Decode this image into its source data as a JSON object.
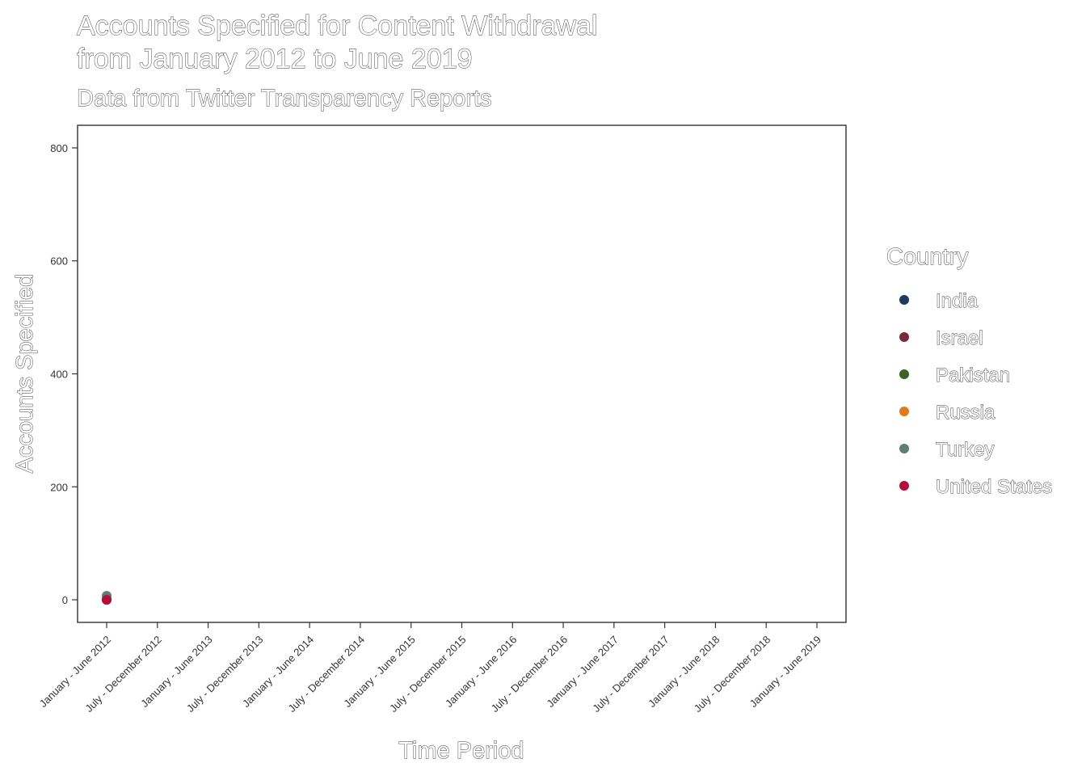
{
  "chart_data": {
    "type": "scatter",
    "title_line1": "Accounts Specified for Content Withdrawal",
    "title_line2": "from January 2012 to June 2019",
    "subtitle": "Data from Twitter Transparency Reports",
    "xlabel": "Time Period",
    "ylabel": "Accounts Specified",
    "legend_title": "Country",
    "legend_position": "right",
    "grid": false,
    "ylim": [
      -40,
      840
    ],
    "yticks": [
      0,
      200,
      400,
      600,
      800
    ],
    "categories": [
      "January - June 2012",
      "July - December 2012",
      "January - June 2013",
      "July - December 2013",
      "January - June 2014",
      "July - December 2014",
      "January - June 2015",
      "July - December 2015",
      "January - June 2016",
      "July - December 2016",
      "January - June 2017",
      "July - December 2017",
      "January - June 2018",
      "July - December 2018",
      "January - June 2019"
    ],
    "series": [
      {
        "name": "India",
        "color": "#1f3a5f",
        "points": [
          {
            "x": "January - June 2012",
            "y": 0
          }
        ]
      },
      {
        "name": "Israel",
        "color": "#7a2a35",
        "points": [
          {
            "x": "January - June 2012",
            "y": 0
          }
        ]
      },
      {
        "name": "Pakistan",
        "color": "#3f5f2a",
        "points": [
          {
            "x": "January - June 2012",
            "y": 0
          }
        ]
      },
      {
        "name": "Russia",
        "color": "#e07b1a",
        "points": [
          {
            "x": "January - June 2012",
            "y": 0
          }
        ]
      },
      {
        "name": "Turkey",
        "color": "#5f7f74",
        "points": [
          {
            "x": "January - June 2012",
            "y": 7
          }
        ]
      },
      {
        "name": "United States",
        "color": "#b0103a",
        "points": [
          {
            "x": "January - June 2012",
            "y": 0
          }
        ]
      }
    ]
  }
}
